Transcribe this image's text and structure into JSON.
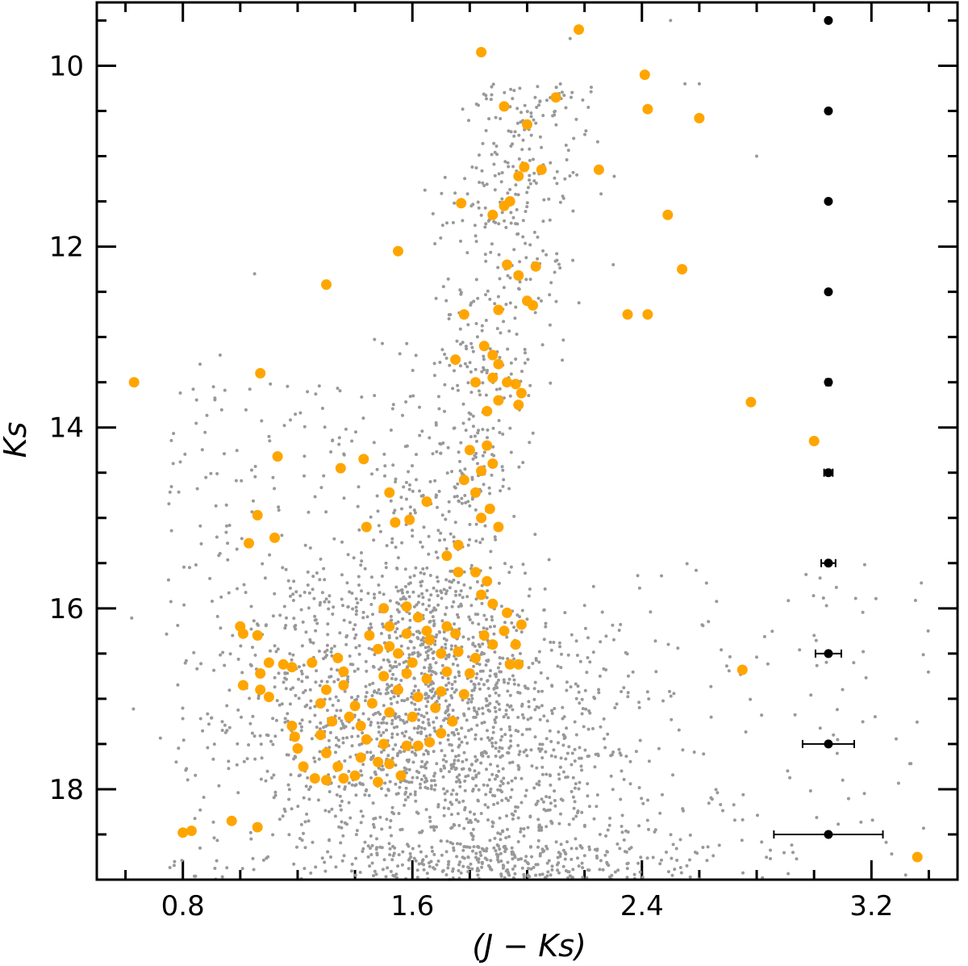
{
  "chart_data": {
    "type": "scatter",
    "title": "",
    "xlabel": "(J − Ks)",
    "ylabel": "Ks",
    "xlim": [
      0.5,
      3.5
    ],
    "ylim": [
      19.0,
      9.3
    ],
    "y_inverted": true,
    "grid": false,
    "xticks": [
      0.8,
      1.6,
      2.4,
      3.2
    ],
    "yticks": [
      10,
      12,
      14,
      16,
      18
    ],
    "colors": {
      "field": "#999999",
      "members": "#ffa500",
      "errors": "#000000"
    },
    "series": [
      {
        "style": "small-gray-points",
        "generated": true,
        "approx_count": 3000,
        "points": [
          [
            1.05,
            12.3
          ],
          [
            0.93,
            13.2
          ],
          [
            0.86,
            13.3
          ],
          [
            0.62,
            13.5
          ],
          [
            1.1,
            14.1
          ],
          [
            2.3,
            12.2
          ],
          [
            2.6,
            10.2
          ],
          [
            2.5,
            9.5
          ],
          [
            2.55,
            10.2
          ],
          [
            2.15,
            9.7
          ],
          [
            2.8,
            11.0
          ],
          [
            3.0,
            16.3
          ],
          [
            3.1,
            17.9
          ]
        ]
      },
      {
        "style": "orange-circles",
        "points": [
          [
            2.18,
            9.6
          ],
          [
            1.84,
            9.85
          ],
          [
            2.41,
            10.1
          ],
          [
            1.92,
            10.45
          ],
          [
            2.1,
            10.35
          ],
          [
            2.42,
            10.48
          ],
          [
            2.6,
            10.58
          ],
          [
            2.0,
            10.65
          ],
          [
            1.99,
            11.12
          ],
          [
            2.05,
            11.15
          ],
          [
            1.97,
            11.22
          ],
          [
            2.25,
            11.15
          ],
          [
            1.94,
            11.5
          ],
          [
            1.92,
            11.55
          ],
          [
            1.77,
            11.52
          ],
          [
            1.88,
            11.65
          ],
          [
            2.49,
            11.65
          ],
          [
            1.55,
            12.05
          ],
          [
            1.93,
            12.2
          ],
          [
            2.03,
            12.22
          ],
          [
            1.97,
            12.32
          ],
          [
            2.54,
            12.25
          ],
          [
            1.3,
            12.42
          ],
          [
            1.78,
            12.75
          ],
          [
            1.9,
            12.7
          ],
          [
            2.35,
            12.75
          ],
          [
            2.42,
            12.75
          ],
          [
            2.0,
            12.6
          ],
          [
            2.02,
            12.65
          ],
          [
            0.63,
            13.5
          ],
          [
            1.07,
            13.4
          ],
          [
            2.78,
            13.72
          ],
          [
            1.43,
            14.35
          ],
          [
            1.13,
            14.32
          ],
          [
            1.35,
            14.45
          ],
          [
            3.0,
            14.15
          ],
          [
            1.52,
            14.72
          ],
          [
            1.54,
            15.05
          ],
          [
            1.59,
            15.02
          ],
          [
            1.44,
            15.1
          ],
          [
            1.65,
            14.82
          ],
          [
            1.06,
            14.97
          ],
          [
            1.03,
            15.28
          ],
          [
            1.12,
            15.22
          ],
          [
            1.0,
            16.2
          ],
          [
            1.01,
            16.28
          ],
          [
            1.06,
            16.3
          ],
          [
            1.01,
            16.85
          ],
          [
            1.07,
            16.9
          ],
          [
            1.07,
            16.72
          ],
          [
            1.1,
            16.6
          ],
          [
            1.15,
            16.62
          ],
          [
            1.18,
            16.65
          ],
          [
            1.1,
            16.98
          ],
          [
            2.75,
            16.68
          ],
          [
            1.18,
            17.3
          ],
          [
            1.19,
            17.42
          ],
          [
            1.2,
            17.55
          ],
          [
            1.22,
            17.75
          ],
          [
            1.26,
            17.88
          ],
          [
            1.3,
            17.9
          ],
          [
            1.36,
            17.88
          ],
          [
            1.4,
            17.85
          ],
          [
            0.8,
            18.48
          ],
          [
            0.83,
            18.46
          ],
          [
            0.97,
            18.35
          ],
          [
            1.06,
            18.42
          ],
          [
            3.36,
            18.75
          ],
          [
            1.75,
            13.25
          ],
          [
            1.85,
            13.1
          ],
          [
            1.88,
            13.2
          ],
          [
            1.9,
            13.3
          ],
          [
            1.82,
            13.5
          ],
          [
            1.88,
            13.45
          ],
          [
            1.93,
            13.5
          ],
          [
            1.96,
            13.52
          ],
          [
            1.98,
            13.62
          ],
          [
            1.9,
            13.7
          ],
          [
            1.97,
            13.75
          ],
          [
            1.86,
            13.82
          ],
          [
            1.8,
            14.25
          ],
          [
            1.86,
            14.2
          ],
          [
            1.88,
            14.4
          ],
          [
            1.84,
            14.48
          ],
          [
            1.78,
            14.58
          ],
          [
            1.82,
            14.72
          ],
          [
            1.87,
            14.9
          ],
          [
            1.84,
            15.0
          ],
          [
            1.9,
            15.1
          ],
          [
            1.76,
            15.3
          ],
          [
            1.72,
            15.42
          ],
          [
            1.76,
            15.6
          ],
          [
            1.82,
            15.6
          ],
          [
            1.86,
            15.7
          ],
          [
            1.84,
            15.85
          ],
          [
            1.88,
            15.95
          ],
          [
            1.93,
            16.05
          ],
          [
            1.98,
            16.18
          ],
          [
            1.96,
            16.4
          ],
          [
            1.94,
            16.62
          ],
          [
            1.97,
            16.62
          ],
          [
            1.5,
            16.0
          ],
          [
            1.58,
            15.98
          ],
          [
            1.62,
            16.1
          ],
          [
            1.52,
            16.2
          ],
          [
            1.45,
            16.3
          ],
          [
            1.48,
            16.45
          ],
          [
            1.55,
            16.5
          ],
          [
            1.66,
            16.35
          ],
          [
            1.72,
            16.2
          ],
          [
            1.5,
            16.75
          ],
          [
            1.58,
            16.72
          ],
          [
            1.65,
            16.78
          ],
          [
            1.72,
            16.7
          ],
          [
            1.8,
            16.72
          ],
          [
            1.55,
            16.9
          ],
          [
            1.62,
            16.98
          ],
          [
            1.7,
            16.92
          ],
          [
            1.78,
            16.95
          ],
          [
            1.46,
            17.05
          ],
          [
            1.52,
            17.15
          ],
          [
            1.6,
            17.2
          ],
          [
            1.68,
            17.1
          ],
          [
            1.74,
            17.25
          ],
          [
            1.44,
            17.45
          ],
          [
            1.5,
            17.5
          ],
          [
            1.58,
            17.52
          ],
          [
            1.66,
            17.48
          ],
          [
            1.42,
            17.65
          ],
          [
            1.48,
            17.7
          ],
          [
            1.52,
            17.72
          ],
          [
            1.56,
            17.85
          ],
          [
            1.48,
            17.92
          ],
          [
            1.62,
            17.52
          ],
          [
            1.7,
            17.38
          ],
          [
            1.34,
            16.55
          ],
          [
            1.36,
            16.7
          ],
          [
            1.3,
            16.9
          ],
          [
            1.28,
            17.05
          ],
          [
            1.25,
            16.6
          ],
          [
            1.32,
            17.25
          ],
          [
            1.38,
            17.2
          ],
          [
            1.4,
            17.08
          ],
          [
            1.36,
            16.85
          ],
          [
            1.28,
            17.4
          ],
          [
            1.3,
            17.6
          ],
          [
            1.34,
            17.75
          ],
          [
            1.42,
            17.3
          ],
          [
            1.6,
            16.6
          ],
          [
            1.65,
            16.25
          ],
          [
            1.75,
            16.28
          ],
          [
            1.85,
            16.3
          ],
          [
            1.92,
            16.25
          ],
          [
            1.76,
            16.48
          ],
          [
            1.82,
            16.55
          ],
          [
            1.88,
            16.4
          ],
          [
            1.7,
            16.5
          ],
          [
            1.52,
            16.42
          ],
          [
            1.58,
            16.28
          ]
        ]
      },
      {
        "style": "black-errorbars",
        "points": [
          {
            "x": 3.05,
            "y": 9.5,
            "xerr": 0.005
          },
          {
            "x": 3.05,
            "y": 10.5,
            "xerr": 0.005
          },
          {
            "x": 3.05,
            "y": 11.5,
            "xerr": 0.005
          },
          {
            "x": 3.05,
            "y": 12.5,
            "xerr": 0.005
          },
          {
            "x": 3.05,
            "y": 13.5,
            "xerr": 0.008
          },
          {
            "x": 3.05,
            "y": 14.5,
            "xerr": 0.015
          },
          {
            "x": 3.05,
            "y": 15.5,
            "xerr": 0.025
          },
          {
            "x": 3.05,
            "y": 16.5,
            "xerr": 0.045
          },
          {
            "x": 3.05,
            "y": 17.5,
            "xerr": 0.09
          },
          {
            "x": 3.05,
            "y": 18.5,
            "xerr": 0.19
          }
        ]
      }
    ]
  }
}
